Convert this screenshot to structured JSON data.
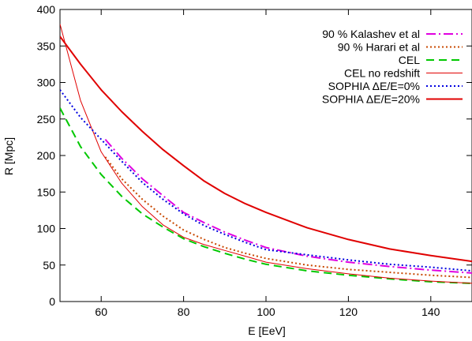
{
  "chart_data": {
    "type": "line",
    "title": "",
    "xlabel": "E [EeV]",
    "ylabel": "R [Mpc]",
    "xlim": [
      50,
      150
    ],
    "ylim": [
      0,
      400
    ],
    "xticks": [
      60,
      80,
      100,
      120,
      140
    ],
    "yticks": [
      0,
      50,
      100,
      150,
      200,
      250,
      300,
      350,
      400
    ],
    "grid": false,
    "legend_position": "top-right",
    "series": [
      {
        "name": "90 % Kalashev et al",
        "color": "#e000e0",
        "style": "dash-dot",
        "x": [
          61,
          65,
          70,
          75,
          80,
          85,
          90,
          95,
          100,
          110,
          120,
          130,
          140,
          150
        ],
        "y": [
          222,
          196,
          168,
          145,
          122,
          108,
          95,
          84,
          74,
          62,
          54,
          48,
          43,
          39
        ]
      },
      {
        "name": "90 % Harari et al",
        "color": "#c84800",
        "style": "dotted",
        "x": [
          61,
          65,
          70,
          75,
          80,
          85,
          90,
          95,
          100,
          110,
          120,
          130,
          140,
          150
        ],
        "y": [
          198,
          168,
          140,
          117,
          98,
          85,
          74,
          66,
          59,
          50,
          44,
          40,
          36,
          33
        ]
      },
      {
        "name": "CEL",
        "color": "#00c800",
        "style": "dashed",
        "x": [
          50,
          55,
          60,
          65,
          70,
          75,
          80,
          85,
          90,
          95,
          100,
          110,
          120,
          130,
          140,
          150
        ],
        "y": [
          265,
          212,
          174,
          144,
          120,
          102,
          86,
          75,
          66,
          58,
          51,
          42,
          36,
          31,
          27,
          25
        ]
      },
      {
        "name": "CEL no redshift",
        "color": "#e00000",
        "style": "thin",
        "x": [
          50,
          55,
          60,
          65,
          70,
          75,
          80,
          85,
          90,
          95,
          100,
          110,
          120,
          130,
          140,
          150
        ],
        "y": [
          380,
          275,
          205,
          162,
          130,
          105,
          88,
          78,
          70,
          62,
          54,
          45,
          38,
          32,
          28,
          25
        ]
      },
      {
        "name": "SOPHIA   ΔE/E=0%",
        "color": "#0000e0",
        "style": "dotted",
        "x": [
          50,
          55,
          60,
          65,
          70,
          75,
          80,
          85,
          90,
          95,
          100,
          110,
          120,
          130,
          140,
          150
        ],
        "y": [
          290,
          252,
          222,
          192,
          163,
          140,
          120,
          104,
          92,
          81,
          71,
          64,
          57,
          51,
          47,
          42
        ]
      },
      {
        "name": "SOPHIA  ΔE/E=20%",
        "color": "#e00000",
        "style": "thick",
        "x": [
          50,
          55,
          60,
          65,
          70,
          75,
          80,
          85,
          90,
          95,
          100,
          110,
          120,
          130,
          140,
          150
        ],
        "y": [
          363,
          325,
          290,
          260,
          233,
          208,
          186,
          165,
          148,
          134,
          122,
          101,
          85,
          72,
          63,
          55
        ]
      }
    ]
  }
}
